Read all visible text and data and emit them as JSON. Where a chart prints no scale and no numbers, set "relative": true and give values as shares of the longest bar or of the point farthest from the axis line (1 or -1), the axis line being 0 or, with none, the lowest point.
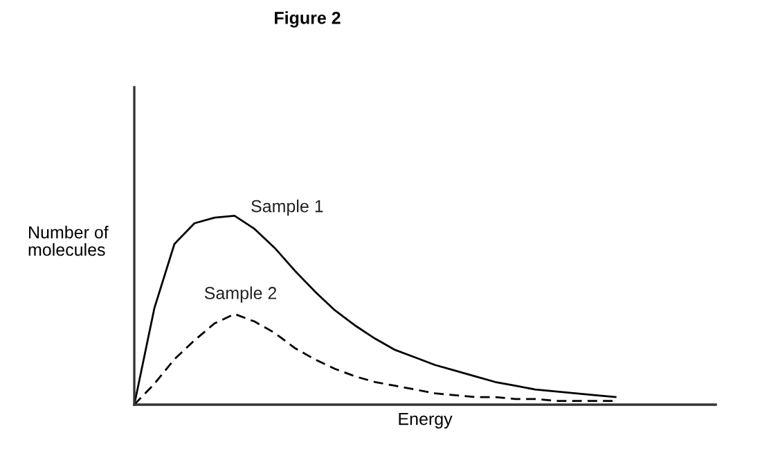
{
  "chart_data": {
    "type": "line",
    "title": "Figure 2",
    "xlabel": "Energy",
    "ylabel": "Number of\nmolecules",
    "relative": true,
    "categories": [
      null,
      null,
      null,
      null,
      null,
      null,
      null,
      null,
      null,
      null,
      null,
      null,
      null,
      null,
      null,
      null,
      null,
      null,
      null,
      null,
      null,
      null,
      null,
      null,
      null,
      null,
      null,
      null,
      null,
      null
    ],
    "series": [
      {
        "name": "Sample 1",
        "color": "#000000",
        "line_style": "solid",
        "values": [
          0,
          0.51,
          0.85,
          0.96,
          0.99,
          1,
          0.93,
          0.83,
          0.71,
          0.6,
          0.5,
          0.42,
          0.35,
          0.29,
          0.25,
          0.21,
          0.18,
          0.15,
          0.12,
          0.1,
          0.08,
          0.07,
          0.06,
          0.05,
          0.04,
          null,
          null,
          null,
          null,
          null
        ]
      },
      {
        "name": "Sample 2",
        "color": "#000000",
        "line_style": "dashed",
        "values": [
          0,
          0.11,
          0.24,
          0.34,
          0.43,
          0.48,
          0.44,
          0.38,
          0.3,
          0.24,
          0.19,
          0.15,
          0.12,
          0.1,
          0.08,
          0.06,
          0.05,
          0.04,
          0.04,
          0.03,
          0.03,
          0.02,
          0.02,
          0.02,
          0.02,
          null,
          null,
          null,
          null,
          null
        ]
      }
    ]
  }
}
